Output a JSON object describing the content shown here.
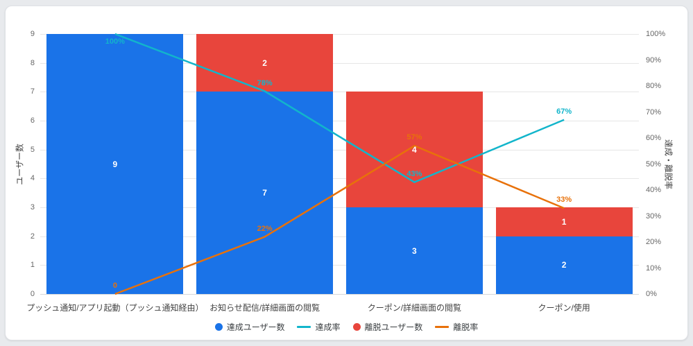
{
  "page_background": "#e8eaed",
  "card_background": "#ffffff",
  "chart_data": {
    "type": "bar",
    "subtype": "funnel-stacked-bars-with-rate-lines",
    "title": "",
    "categories": [
      "プッシュ通知/アプリ起動（プッシュ通知経由）",
      "お知らせ配信/詳細画面の閲覧",
      "クーポン/詳細画面の閲覧",
      "クーポン/使用"
    ],
    "series": [
      {
        "name": "達成ユーザー数",
        "type": "bar",
        "color": "#1a73e8",
        "values": [
          9,
          7,
          3,
          2
        ]
      },
      {
        "name": "離脱ユーザー数",
        "type": "bar",
        "color": "#e8453c",
        "values": [
          0,
          2,
          4,
          1
        ]
      },
      {
        "name": "達成率",
        "type": "line",
        "color": "#12b5cb",
        "values_pct": [
          100,
          78,
          43,
          67
        ],
        "point_labels": [
          "100%",
          "78%",
          "43%",
          "67%"
        ]
      },
      {
        "name": "離脱率",
        "type": "line",
        "color": "#e8710a",
        "values_pct": [
          0,
          22,
          57,
          33
        ],
        "point_labels": [
          "0",
          "22%",
          "57%",
          "33%"
        ]
      }
    ],
    "left_axis": {
      "title": "ユーザー数",
      "min": 0,
      "max": 9,
      "ticks": [
        "0",
        "1",
        "2",
        "3",
        "4",
        "5",
        "6",
        "7",
        "8",
        "9"
      ]
    },
    "right_axis": {
      "title": "達成・離脱率",
      "min": 0,
      "max": 100,
      "ticks": [
        "0%",
        "10%",
        "20%",
        "30%",
        "40%",
        "50%",
        "60%",
        "70%",
        "80%",
        "90%",
        "100%"
      ]
    },
    "grid": true,
    "legend_position": "bottom",
    "legend": [
      {
        "label": "達成ユーザー数",
        "swatch": "circle",
        "color": "#1a73e8"
      },
      {
        "label": "達成率",
        "swatch": "line",
        "color": "#12b5cb"
      },
      {
        "label": "離脱ユーザー数",
        "swatch": "circle",
        "color": "#e8453c"
      },
      {
        "label": "離脱率",
        "swatch": "line",
        "color": "#e8710a"
      }
    ]
  }
}
